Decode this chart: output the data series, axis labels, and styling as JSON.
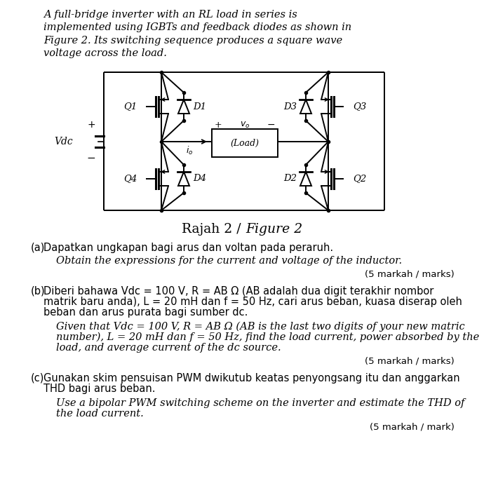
{
  "bg_color": "#ffffff",
  "intro_text": "A full-bridge inverter with an RL load in series is\nimplemented using IGBTs and feedback diodes as shown in\nFigure 2. Its switching sequence produces a square wave\nvoltage across the load.",
  "figure_caption_normal": "Rajah 2 / ",
  "figure_caption_italic": "Figure 2",
  "qa_label": "(a)",
  "qa_malay": "Dapatkan ungkapan bagi arus dan voltan pada peraruh.",
  "qa_english": "Obtain the expressions for the current and voltage of the inductor.",
  "qa_marks": "(5 markah / marks)",
  "qb_label": "(b)",
  "qb_malay_1": "Diberi bahawa Vdc = 100 V, R = AB Ω (AB adalah dua digit terakhir nombor",
  "qb_malay_2": "matrik baru anda), L = 20 mH dan f = 50 Hz, cari arus beban, kuasa diserap oleh",
  "qb_malay_3": "beban dan arus purata bagi sumber dc.",
  "qb_english_1": "Given that Vdc = 100 V, R = AB Ω (AB is the last two digits of your new matric",
  "qb_english_2": "number), L = 20 mH dan f = 50 Hz, find the load current, power absorbed by the",
  "qb_english_3": "load, and average current of the dc source.",
  "qb_marks": "(5 markah / marks)",
  "qc_label": "(c)",
  "qc_malay_1": "Gunakan skim pensuisan PWM dwikutub keatas penyongsang itu dan anggarkan",
  "qc_malay_2": "THD bagi arus beban.",
  "qc_english_1": "Use a bipolar PWM switching scheme on the inverter and estimate the THD of",
  "qc_english_2": "the load current.",
  "qc_marks": "(5 markah / mark)"
}
